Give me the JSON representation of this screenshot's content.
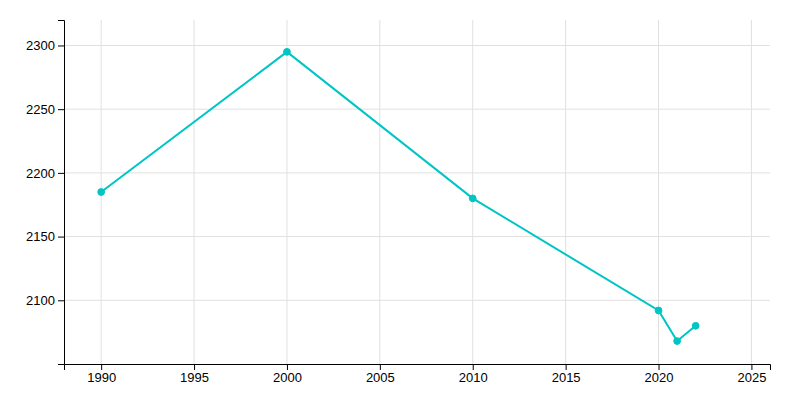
{
  "chart_data": {
    "type": "line",
    "x": [
      1990,
      2000,
      2010,
      2020,
      2021,
      2022
    ],
    "values": [
      2185,
      2295,
      2180,
      2092,
      2068,
      2080
    ],
    "color": "#00C5C5",
    "marker": "circle",
    "xlim": [
      1988,
      2026
    ],
    "ylim": [
      2050,
      2320
    ],
    "xticks": [
      1990,
      1995,
      2000,
      2005,
      2010,
      2015,
      2020,
      2025
    ],
    "yticks": [
      2100,
      2150,
      2200,
      2250,
      2300
    ],
    "grid": true
  }
}
